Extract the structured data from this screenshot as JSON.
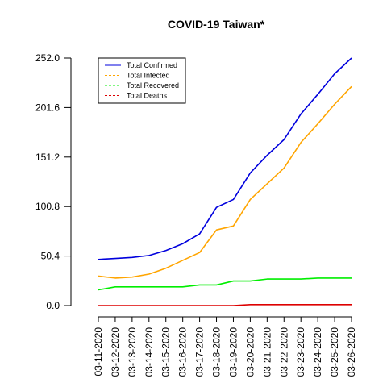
{
  "chart_data": {
    "type": "line",
    "title": "COVID-19 Taiwan*",
    "xlabel": "",
    "ylabel": "",
    "x": [
      "03-11-2020",
      "03-12-2020",
      "03-13-2020",
      "03-14-2020",
      "03-15-2020",
      "03-16-2020",
      "03-17-2020",
      "03-18-2020",
      "03-19-2020",
      "03-20-2020",
      "03-21-2020",
      "03-22-2020",
      "03-23-2020",
      "03-24-2020",
      "03-25-2020",
      "03-26-2020"
    ],
    "yticks": [
      "0.0",
      "50.4",
      "100.8",
      "151.2",
      "201.6",
      "252.0"
    ],
    "ylim": [
      0,
      252
    ],
    "grid": false,
    "legend_position": "top-left",
    "series": [
      {
        "name": "Total Confirmed",
        "color": "#0000dd",
        "style": "solid",
        "values": [
          47,
          48,
          49,
          51,
          56,
          63,
          73,
          100,
          108,
          135,
          153,
          169,
          195,
          215,
          236,
          252
        ]
      },
      {
        "name": "Total Infected",
        "color": "#ffa500",
        "style": "dashed",
        "values": [
          30,
          28,
          29,
          32,
          38,
          46,
          54,
          77,
          81,
          108,
          124,
          140,
          166,
          185,
          205,
          223
        ]
      },
      {
        "name": "Total Recovered",
        "color": "#00ee00",
        "style": "dashed",
        "values": [
          16,
          19,
          19,
          19,
          19,
          19,
          21,
          21,
          25,
          25,
          27,
          27,
          27,
          28,
          28,
          28
        ]
      },
      {
        "name": "Total Deaths",
        "color": "#dd0000",
        "style": "dashed",
        "values": [
          0,
          0,
          0,
          0,
          0,
          0,
          0,
          0,
          0,
          1,
          1,
          1,
          1,
          1,
          1,
          1
        ]
      }
    ]
  }
}
